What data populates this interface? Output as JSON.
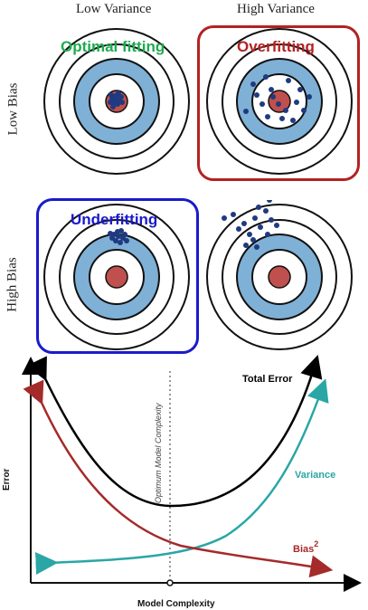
{
  "columns": [
    "Low Variance",
    "High Variance"
  ],
  "rows": [
    "Low Bias",
    "High Bias"
  ],
  "panels": {
    "low_bias_low_variance": {
      "tag": "Optimal fitting",
      "tag_color": "#1faa50"
    },
    "low_bias_high_variance": {
      "tag": "Overfitting",
      "tag_color": "#b22222",
      "frame_color": "#b22222"
    },
    "high_bias_low_variance": {
      "tag": "Underfitting",
      "tag_color": "#1a1acc",
      "frame_color": "#1a1acc"
    },
    "high_bias_high_variance": {
      "tag": ""
    }
  },
  "colors": {
    "ring_blue": "#7fb0d6",
    "bullseye": "#c0504d",
    "dot": "#1f3a80",
    "total_error": "#000000",
    "variance": "#2aa6a6",
    "bias": "#a52a2a"
  },
  "chart_data": {
    "type": "line",
    "xlabel": "Model Complexity",
    "ylabel": "Error",
    "optimum_label": "Optimum Model Complexity",
    "series": [
      {
        "name": "Total Error",
        "label": "Total Error"
      },
      {
        "name": "Variance",
        "label": "Variance"
      },
      {
        "name": "Bias",
        "label": "Bias",
        "superscript": "2"
      }
    ]
  }
}
